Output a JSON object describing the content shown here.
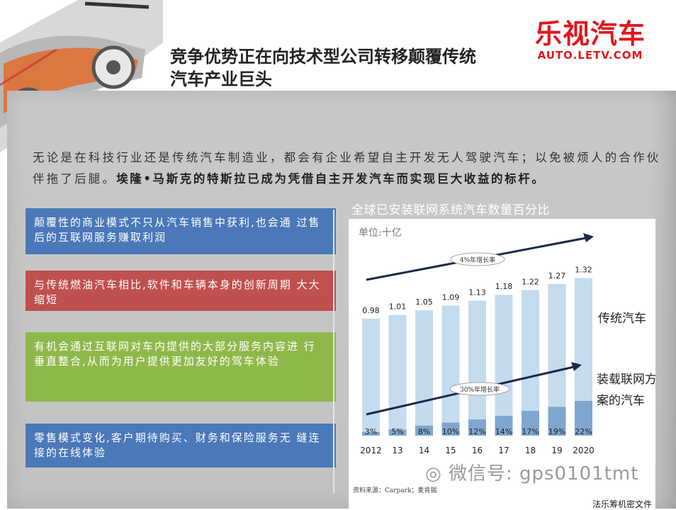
{
  "header": {
    "title_line1": "竞争优势正在向技术型公司转移颠覆传统",
    "title_line2": "汽车产业巨头",
    "logo_zh": "乐视汽车",
    "logo_en": "AUTO.LETV.COM"
  },
  "intro": {
    "normal": "无论是在科技行业还是传统汽车制造业，都会有企业希望自主开发无人驾驶汽车；以免被烦人的合作伙伴拖了后腿。",
    "bold": "埃隆•马斯克的特斯拉已成为凭借自主开发汽车而实现巨大收益的标杆。"
  },
  "boxes": [
    {
      "text": "颠覆性的商业模式不只从汽车销售中获利,也会通 过售后的互联网服务赚取利润",
      "color": "#4a78b8"
    },
    {
      "text": "与传统燃油汽车相比,软件和车辆本身的创新周期 大大缩短",
      "color": "#c0504d"
    },
    {
      "text": "有机会通过互联网对车内提供的大部分服务内容进 行垂直整合,从而为用户提供更加友好的驾车体验",
      "color": "#8fb84a"
    },
    {
      "text": "零售模式变化,客户期待购买、财务和保险服务无 缝连接的在线体验",
      "color": "#4a78b8"
    }
  ],
  "chart_title": "全球已安装联网系统汽车数量百分比",
  "chart_data": {
    "type": "bar",
    "unit_label": "单位:十亿",
    "categories": [
      "2012",
      "13",
      "14",
      "15",
      "16",
      "17",
      "18",
      "19",
      "2020"
    ],
    "series": [
      {
        "name": "传统汽车",
        "values": [
          0.98,
          1.01,
          1.05,
          1.09,
          1.13,
          1.18,
          1.22,
          1.27,
          1.32
        ],
        "labels": [
          "0.98",
          "1.01",
          "1.05",
          "1.09",
          "1.13",
          "1.18",
          "1.22",
          "1.27",
          "1.32"
        ],
        "color": "#c5dbee"
      },
      {
        "name": "装载联网方案的汽车",
        "values": [
          3,
          5,
          8,
          10,
          12,
          14,
          17,
          19,
          22
        ],
        "labels": [
          "3%",
          "5%",
          "8%",
          "10%",
          "12%",
          "14%",
          "17%",
          "19%",
          "22%"
        ],
        "color": "#7fa6cf"
      }
    ],
    "annotations": [
      "4%年增长率",
      "30%年增长率"
    ],
    "legend_labels": [
      "传统汽车",
      "装载联网方",
      "案的汽车"
    ],
    "source": "资料来源：Carpark；麦肯锡",
    "ylim": [
      0,
      1.4
    ]
  },
  "watermark": "微信号: gps0101tmt",
  "footer": "法乐筹机密文件",
  "icons": {
    "corner_graphic": "car-illustration",
    "watermark_icon": "wechat-icon"
  }
}
